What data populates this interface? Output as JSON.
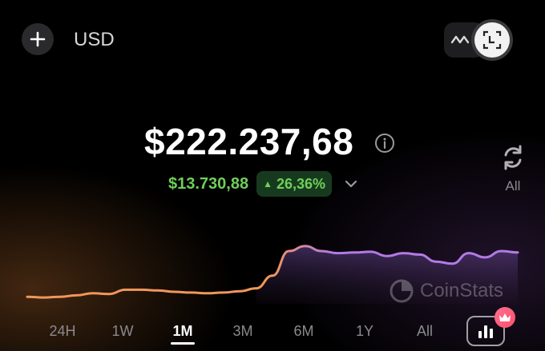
{
  "header": {
    "add_icon": "plus-icon",
    "currency": "USD",
    "wave_icon": "wave-icon",
    "scan_icon": "scan-icon"
  },
  "portfolio": {
    "balance": "$222.237,68",
    "change_amount": "$13.730,88",
    "change_percent": "26,36%",
    "change_direction": "up",
    "positive_color": "#6fcf5a"
  },
  "refresh": {
    "label": "All"
  },
  "watermark": {
    "text": "CoinStats"
  },
  "chart_data": {
    "type": "area",
    "title": "",
    "xlabel": "",
    "ylabel": "",
    "ylim": [
      0,
      100
    ],
    "x": [
      0,
      1,
      2,
      3,
      4,
      5,
      6,
      7,
      8,
      9,
      10,
      11,
      12,
      13,
      14,
      15,
      16,
      17,
      18,
      19,
      20,
      21,
      22,
      23,
      24,
      25,
      26,
      27,
      28,
      29,
      30
    ],
    "series": [
      {
        "values": [
          10,
          9,
          10,
          12,
          15,
          14,
          20,
          20,
          19,
          17,
          16,
          15,
          16,
          18,
          22,
          40,
          75,
          82,
          75,
          72,
          73,
          74,
          68,
          72,
          70,
          60,
          57,
          72,
          66,
          75,
          73
        ],
        "color_start": "#f0975a",
        "color_end": "#b37ae6"
      }
    ]
  },
  "ranges": {
    "items": [
      "24H",
      "1W",
      "1M",
      "3M",
      "6M",
      "1Y",
      "All"
    ],
    "active": "1M"
  },
  "chart_button": {
    "icon": "bar-chart-icon",
    "badge_icon": "crown-icon"
  }
}
